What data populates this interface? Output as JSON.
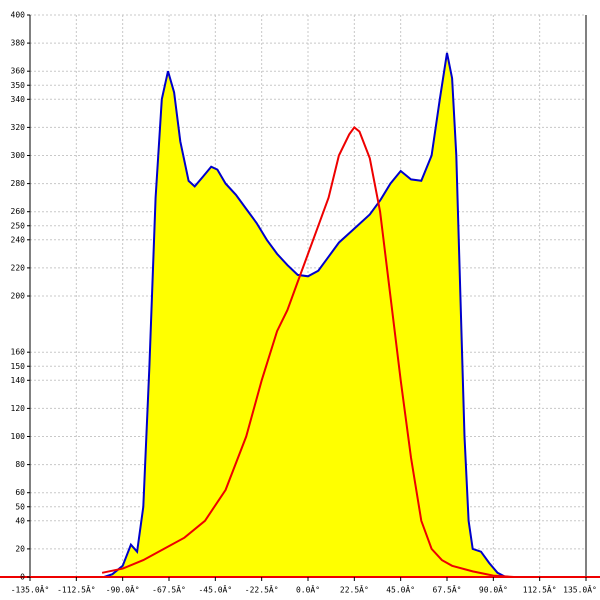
{
  "chart_data": {
    "type": "line",
    "xlim": [
      -135,
      135
    ],
    "ylim": [
      0,
      400
    ],
    "xticks": [
      {
        "value": -135,
        "label": "-135.0Â°"
      },
      {
        "value": -112.5,
        "label": "-112.5Â°"
      },
      {
        "value": -90,
        "label": "-90.0Â°"
      },
      {
        "value": -67.5,
        "label": "-67.5Â°"
      },
      {
        "value": -45,
        "label": "-45.0Â°"
      },
      {
        "value": -22.5,
        "label": "-22.5Â°"
      },
      {
        "value": 0,
        "label": "0.0Â°"
      },
      {
        "value": 22.5,
        "label": "22.5Â°"
      },
      {
        "value": 45,
        "label": "45.0Â°"
      },
      {
        "value": 67.5,
        "label": "67.5Â°"
      },
      {
        "value": 90,
        "label": "90.0Â°"
      },
      {
        "value": 112.5,
        "label": "112.5Â°"
      },
      {
        "value": 135,
        "label": "135.0Â°"
      }
    ],
    "yticks": [
      0,
      20,
      40,
      50,
      60,
      80,
      100,
      120,
      140,
      150,
      160,
      200,
      220,
      240,
      250,
      260,
      280,
      300,
      320,
      340,
      350,
      360,
      380,
      400
    ],
    "grid": true,
    "series": [
      {
        "color": "#0000cc",
        "fill": "#ffff00",
        "x": [
          -99,
          -95,
          -90,
          -86,
          -83,
          -80,
          -77,
          -74,
          -71,
          -68,
          -65,
          -62,
          -58,
          -55,
          -51,
          -47,
          -44,
          -40,
          -35,
          -30,
          -25,
          -20,
          -15,
          -10,
          -5,
          0,
          5,
          10,
          15,
          22.5,
          30,
          35,
          40,
          45,
          50,
          55,
          60,
          64,
          67.5,
          70,
          72,
          74,
          76,
          78,
          80,
          84,
          88,
          92,
          96,
          100
        ],
        "values": [
          0,
          2,
          8,
          23,
          18,
          50,
          150,
          270,
          340,
          360,
          345,
          310,
          282,
          278,
          285,
          292,
          290,
          280,
          272,
          262,
          252,
          240,
          230,
          222,
          215,
          214,
          218,
          228,
          238,
          248,
          258,
          268,
          280,
          289,
          283,
          282,
          300,
          340,
          373,
          355,
          300,
          200,
          100,
          40,
          20,
          18,
          10,
          3,
          0,
          0
        ]
      },
      {
        "color": "#ee0000",
        "x": [
          -100,
          -90,
          -80,
          -70,
          -60,
          -50,
          -40,
          -30,
          -22.5,
          -15,
          -10,
          -5,
          0,
          5,
          10,
          15,
          20,
          22.5,
          25,
          30,
          35,
          40,
          45,
          50,
          55,
          60,
          65,
          70,
          80,
          90,
          100
        ],
        "values": [
          3,
          6,
          12,
          20,
          28,
          40,
          62,
          100,
          140,
          175,
          190,
          210,
          230,
          250,
          270,
          300,
          315,
          320,
          317,
          298,
          260,
          200,
          140,
          85,
          40,
          20,
          12,
          8,
          4,
          1,
          0
        ]
      }
    ]
  }
}
